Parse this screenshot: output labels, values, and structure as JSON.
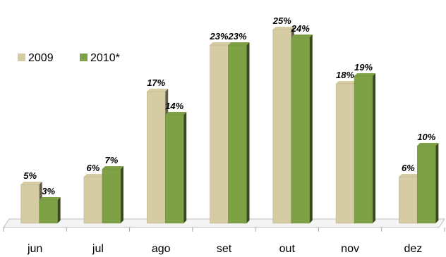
{
  "chart_data": {
    "type": "bar",
    "categories": [
      "jun",
      "jul",
      "ago",
      "set",
      "out",
      "nov",
      "dez"
    ],
    "series": [
      {
        "name": "2009",
        "values": [
          5,
          6,
          17,
          23,
          25,
          18,
          6
        ],
        "labels": [
          "5%",
          "6%",
          "17%",
          "23%",
          "25%",
          "18%",
          "6%"
        ],
        "color": "#d6cca3"
      },
      {
        "name": "2010*",
        "values": [
          3,
          7,
          14,
          23,
          24,
          19,
          10
        ],
        "labels": [
          "3%",
          "7%",
          "14%",
          "23%",
          "24%",
          "19%",
          "10%"
        ],
        "color": "#7fa146"
      }
    ],
    "ylim": [
      0,
      26
    ],
    "grid": false,
    "legend": "top-left"
  }
}
